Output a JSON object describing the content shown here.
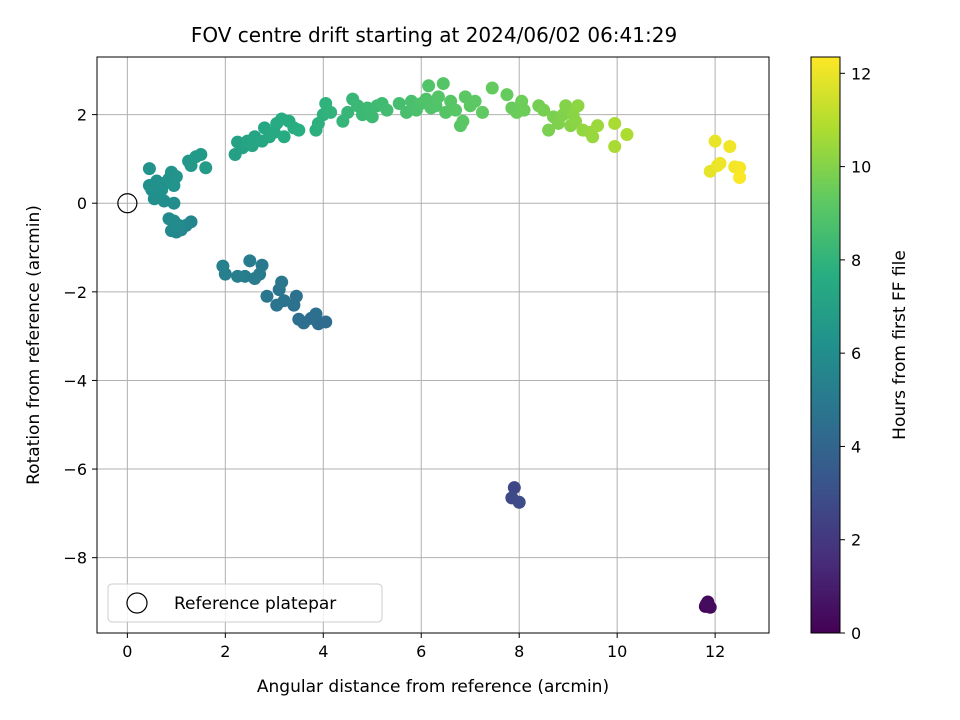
{
  "chart_data": {
    "type": "scatter",
    "title": "FOV centre drift starting at 2024/06/02 06:41:29",
    "xlabel": "Angular distance from reference (arcmin)",
    "ylabel": "Rotation from reference (arcmin)",
    "xlim": [
      -0.62,
      13.1
    ],
    "ylim": [
      -9.7,
      3.3
    ],
    "xticks": [
      0,
      2,
      4,
      6,
      8,
      10,
      12
    ],
    "yticks": [
      2,
      0,
      -2,
      -4,
      -6,
      -8
    ],
    "grid": true,
    "legend": {
      "label": "Reference platepar",
      "placement": "bottom-left"
    },
    "reference_point": {
      "x": 0,
      "y": 0
    },
    "colorbar": {
      "label": "Hours from first FF file",
      "range": [
        0,
        12.35
      ],
      "ticks": [
        0,
        2,
        4,
        6,
        8,
        10,
        12
      ],
      "colormap": "viridis"
    },
    "points": [
      {
        "x": 11.8,
        "y": -9.1,
        "h": 0.1
      },
      {
        "x": 11.85,
        "y": -9.0,
        "h": 0.2
      },
      {
        "x": 11.9,
        "y": -9.12,
        "h": 0.3
      },
      {
        "x": 11.82,
        "y": -9.05,
        "h": 0.4
      },
      {
        "x": 7.9,
        "y": -6.42,
        "h": 2.6
      },
      {
        "x": 7.85,
        "y": -6.65,
        "h": 2.7
      },
      {
        "x": 8.0,
        "y": -6.75,
        "h": 2.8
      },
      {
        "x": 3.9,
        "y": -2.72,
        "h": 4.3
      },
      {
        "x": 4.05,
        "y": -2.68,
        "h": 4.35
      },
      {
        "x": 3.75,
        "y": -2.6,
        "h": 4.4
      },
      {
        "x": 3.6,
        "y": -2.7,
        "h": 4.45
      },
      {
        "x": 3.5,
        "y": -2.62,
        "h": 4.5
      },
      {
        "x": 3.85,
        "y": -2.5,
        "h": 4.5
      },
      {
        "x": 3.4,
        "y": -2.3,
        "h": 4.6
      },
      {
        "x": 3.45,
        "y": -2.1,
        "h": 4.65
      },
      {
        "x": 3.2,
        "y": -2.2,
        "h": 4.7
      },
      {
        "x": 3.05,
        "y": -2.3,
        "h": 4.75
      },
      {
        "x": 3.1,
        "y": -1.95,
        "h": 4.8
      },
      {
        "x": 2.85,
        "y": -2.1,
        "h": 4.85
      },
      {
        "x": 3.15,
        "y": -1.78,
        "h": 4.9
      },
      {
        "x": 2.75,
        "y": -1.4,
        "h": 5.0
      },
      {
        "x": 2.7,
        "y": -1.6,
        "h": 5.05
      },
      {
        "x": 2.6,
        "y": -1.7,
        "h": 5.1
      },
      {
        "x": 2.5,
        "y": -1.3,
        "h": 5.15
      },
      {
        "x": 2.4,
        "y": -1.65,
        "h": 5.2
      },
      {
        "x": 2.25,
        "y": -1.65,
        "h": 5.25
      },
      {
        "x": 2.0,
        "y": -1.6,
        "h": 5.3
      },
      {
        "x": 1.95,
        "y": -1.42,
        "h": 5.35
      },
      {
        "x": 1.3,
        "y": -0.42,
        "h": 5.6
      },
      {
        "x": 1.2,
        "y": -0.5,
        "h": 5.65
      },
      {
        "x": 1.1,
        "y": -0.6,
        "h": 5.7
      },
      {
        "x": 1.0,
        "y": -0.65,
        "h": 5.75
      },
      {
        "x": 0.9,
        "y": -0.62,
        "h": 5.8
      },
      {
        "x": 0.85,
        "y": -0.35,
        "h": 5.85
      },
      {
        "x": 0.95,
        "y": -0.4,
        "h": 5.9
      },
      {
        "x": 1.05,
        "y": -0.5,
        "h": 5.9
      },
      {
        "x": 0.95,
        "y": 0.0,
        "h": 6.0
      },
      {
        "x": 0.75,
        "y": 0.05,
        "h": 6.05
      },
      {
        "x": 0.55,
        "y": 0.1,
        "h": 6.1
      },
      {
        "x": 0.65,
        "y": 0.25,
        "h": 6.1
      },
      {
        "x": 0.5,
        "y": 0.3,
        "h": 6.15
      },
      {
        "x": 0.45,
        "y": 0.4,
        "h": 6.2
      },
      {
        "x": 0.6,
        "y": 0.5,
        "h": 6.2
      },
      {
        "x": 0.75,
        "y": 0.45,
        "h": 6.25
      },
      {
        "x": 0.7,
        "y": 0.3,
        "h": 6.25
      },
      {
        "x": 0.85,
        "y": 0.55,
        "h": 6.3
      },
      {
        "x": 0.9,
        "y": 0.7,
        "h": 6.3
      },
      {
        "x": 1.0,
        "y": 0.6,
        "h": 6.35
      },
      {
        "x": 0.95,
        "y": 0.4,
        "h": 6.35
      },
      {
        "x": 0.45,
        "y": 0.78,
        "h": 6.3
      },
      {
        "x": 1.25,
        "y": 0.95,
        "h": 6.5
      },
      {
        "x": 1.3,
        "y": 0.85,
        "h": 6.55
      },
      {
        "x": 1.4,
        "y": 1.05,
        "h": 6.6
      },
      {
        "x": 1.5,
        "y": 1.1,
        "h": 6.65
      },
      {
        "x": 1.6,
        "y": 0.8,
        "h": 6.7
      },
      {
        "x": 2.2,
        "y": 1.1,
        "h": 7.0
      },
      {
        "x": 2.25,
        "y": 1.38,
        "h": 7.05
      },
      {
        "x": 2.35,
        "y": 1.25,
        "h": 7.1
      },
      {
        "x": 2.45,
        "y": 1.4,
        "h": 7.15
      },
      {
        "x": 2.55,
        "y": 1.3,
        "h": 7.2
      },
      {
        "x": 2.6,
        "y": 1.5,
        "h": 7.25
      },
      {
        "x": 2.75,
        "y": 1.4,
        "h": 7.3
      },
      {
        "x": 2.8,
        "y": 1.7,
        "h": 7.35
      },
      {
        "x": 2.9,
        "y": 1.5,
        "h": 7.4
      },
      {
        "x": 3.0,
        "y": 1.6,
        "h": 7.45
      },
      {
        "x": 3.05,
        "y": 1.8,
        "h": 7.5
      },
      {
        "x": 3.15,
        "y": 1.9,
        "h": 7.55
      },
      {
        "x": 3.2,
        "y": 1.5,
        "h": 7.6
      },
      {
        "x": 3.3,
        "y": 1.85,
        "h": 7.6
      },
      {
        "x": 3.4,
        "y": 1.7,
        "h": 7.65
      },
      {
        "x": 3.5,
        "y": 1.65,
        "h": 7.7
      },
      {
        "x": 3.85,
        "y": 1.65,
        "h": 7.8
      },
      {
        "x": 3.9,
        "y": 1.8,
        "h": 7.85
      },
      {
        "x": 4.0,
        "y": 2.0,
        "h": 7.9
      },
      {
        "x": 4.05,
        "y": 2.25,
        "h": 7.95
      },
      {
        "x": 4.15,
        "y": 2.05,
        "h": 8.0
      },
      {
        "x": 4.4,
        "y": 1.85,
        "h": 8.1
      },
      {
        "x": 4.5,
        "y": 2.05,
        "h": 8.15
      },
      {
        "x": 4.6,
        "y": 2.35,
        "h": 8.2
      },
      {
        "x": 4.7,
        "y": 2.2,
        "h": 8.25
      },
      {
        "x": 4.8,
        "y": 2.0,
        "h": 8.3
      },
      {
        "x": 4.9,
        "y": 2.15,
        "h": 8.35
      },
      {
        "x": 5.0,
        "y": 1.95,
        "h": 8.35
      },
      {
        "x": 5.1,
        "y": 2.2,
        "h": 8.4
      },
      {
        "x": 5.2,
        "y": 2.25,
        "h": 8.45
      },
      {
        "x": 5.3,
        "y": 2.1,
        "h": 8.5
      },
      {
        "x": 5.55,
        "y": 2.25,
        "h": 8.6
      },
      {
        "x": 5.7,
        "y": 2.05,
        "h": 8.65
      },
      {
        "x": 5.8,
        "y": 2.3,
        "h": 8.7
      },
      {
        "x": 5.9,
        "y": 2.1,
        "h": 8.75
      },
      {
        "x": 6.0,
        "y": 2.25,
        "h": 8.8
      },
      {
        "x": 6.1,
        "y": 2.35,
        "h": 8.85
      },
      {
        "x": 6.2,
        "y": 2.15,
        "h": 8.85
      },
      {
        "x": 6.15,
        "y": 2.65,
        "h": 8.9
      },
      {
        "x": 6.3,
        "y": 2.2,
        "h": 8.9
      },
      {
        "x": 6.35,
        "y": 2.4,
        "h": 8.95
      },
      {
        "x": 6.45,
        "y": 2.7,
        "h": 9.0
      },
      {
        "x": 6.5,
        "y": 2.05,
        "h": 9.0
      },
      {
        "x": 6.6,
        "y": 2.3,
        "h": 9.05
      },
      {
        "x": 6.7,
        "y": 2.1,
        "h": 9.1
      },
      {
        "x": 6.8,
        "y": 1.75,
        "h": 9.1
      },
      {
        "x": 6.85,
        "y": 1.85,
        "h": 9.15
      },
      {
        "x": 6.9,
        "y": 2.4,
        "h": 9.15
      },
      {
        "x": 7.0,
        "y": 2.2,
        "h": 9.2
      },
      {
        "x": 7.1,
        "y": 2.3,
        "h": 9.2
      },
      {
        "x": 7.25,
        "y": 2.05,
        "h": 9.3
      },
      {
        "x": 7.45,
        "y": 2.6,
        "h": 9.35
      },
      {
        "x": 7.75,
        "y": 2.45,
        "h": 9.4
      },
      {
        "x": 7.85,
        "y": 2.15,
        "h": 9.45
      },
      {
        "x": 7.95,
        "y": 2.05,
        "h": 9.5
      },
      {
        "x": 8.05,
        "y": 2.3,
        "h": 9.55
      },
      {
        "x": 8.1,
        "y": 2.1,
        "h": 9.55
      },
      {
        "x": 8.4,
        "y": 2.2,
        "h": 9.7
      },
      {
        "x": 8.5,
        "y": 2.1,
        "h": 9.75
      },
      {
        "x": 8.6,
        "y": 1.65,
        "h": 9.8
      },
      {
        "x": 8.7,
        "y": 1.95,
        "h": 9.85
      },
      {
        "x": 8.8,
        "y": 1.8,
        "h": 9.9
      },
      {
        "x": 8.9,
        "y": 2.0,
        "h": 9.95
      },
      {
        "x": 8.95,
        "y": 2.2,
        "h": 10.0
      },
      {
        "x": 9.05,
        "y": 1.75,
        "h": 10.05
      },
      {
        "x": 9.1,
        "y": 2.0,
        "h": 10.1
      },
      {
        "x": 9.15,
        "y": 1.85,
        "h": 10.15
      },
      {
        "x": 9.2,
        "y": 2.2,
        "h": 10.2
      },
      {
        "x": 9.3,
        "y": 1.65,
        "h": 10.3
      },
      {
        "x": 9.45,
        "y": 1.6,
        "h": 10.35
      },
      {
        "x": 9.5,
        "y": 1.5,
        "h": 10.4
      },
      {
        "x": 9.6,
        "y": 1.75,
        "h": 10.45
      },
      {
        "x": 9.95,
        "y": 1.8,
        "h": 10.7
      },
      {
        "x": 9.95,
        "y": 1.28,
        "h": 10.75
      },
      {
        "x": 10.2,
        "y": 1.55,
        "h": 10.8
      },
      {
        "x": 11.9,
        "y": 0.72,
        "h": 11.9
      },
      {
        "x": 12.0,
        "y": 1.4,
        "h": 11.95
      },
      {
        "x": 12.05,
        "y": 0.85,
        "h": 12.0
      },
      {
        "x": 12.1,
        "y": 0.9,
        "h": 12.05
      },
      {
        "x": 12.3,
        "y": 1.28,
        "h": 12.1
      },
      {
        "x": 12.4,
        "y": 0.82,
        "h": 12.15
      },
      {
        "x": 12.5,
        "y": 0.8,
        "h": 12.2
      },
      {
        "x": 12.5,
        "y": 0.58,
        "h": 12.3
      }
    ]
  }
}
